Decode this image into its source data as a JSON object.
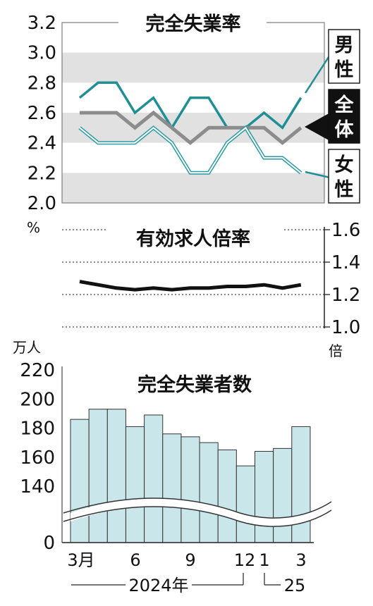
{
  "chart_data": [
    {
      "type": "line",
      "title": "完全失業率",
      "y_unit": "%",
      "ylim": [
        2.0,
        3.2
      ],
      "y_ticks": [
        "3.2",
        "3.0",
        "2.8",
        "2.6",
        "2.4",
        "2.2",
        "2.0"
      ],
      "bands": [
        [
          2.8,
          3.0
        ],
        [
          2.4,
          2.6
        ],
        [
          2.0,
          2.2
        ]
      ],
      "x": [
        "2024-03",
        "2024-04",
        "2024-05",
        "2024-06",
        "2024-07",
        "2024-08",
        "2024-09",
        "2024-10",
        "2024-11",
        "2024-12",
        "2025-01",
        "2025-02",
        "2025-03"
      ],
      "series": [
        {
          "name": "男性",
          "color": "#1f8f95",
          "values": [
            2.7,
            2.8,
            2.8,
            2.6,
            2.7,
            2.5,
            2.7,
            2.7,
            2.5,
            2.5,
            2.6,
            2.5,
            2.7
          ]
        },
        {
          "name": "全体",
          "color": "#8c8c8c",
          "values": [
            2.6,
            2.6,
            2.6,
            2.5,
            2.6,
            2.5,
            2.4,
            2.5,
            2.5,
            2.5,
            2.5,
            2.4,
            2.5
          ]
        },
        {
          "name": "女性",
          "color": "#2a9aa0",
          "values": [
            2.5,
            2.4,
            2.4,
            2.4,
            2.5,
            2.4,
            2.2,
            2.2,
            2.4,
            2.5,
            2.3,
            2.3,
            2.2
          ]
        }
      ]
    },
    {
      "type": "line",
      "title": "有効求人倍率",
      "y_unit": "倍",
      "ylim": [
        1.0,
        1.6
      ],
      "y_ticks": [
        "1.6",
        "1.4",
        "1.2",
        "1.0"
      ],
      "x": [
        "2024-03",
        "2024-04",
        "2024-05",
        "2024-06",
        "2024-07",
        "2024-08",
        "2024-09",
        "2024-10",
        "2024-11",
        "2024-12",
        "2025-01",
        "2025-02",
        "2025-03"
      ],
      "series": [
        {
          "name": "",
          "color": "#111111",
          "values": [
            1.28,
            1.26,
            1.24,
            1.23,
            1.24,
            1.23,
            1.24,
            1.24,
            1.25,
            1.25,
            1.26,
            1.24,
            1.26
          ]
        }
      ]
    },
    {
      "type": "bar",
      "title": "完全失業者数",
      "y_unit": "万人",
      "ylim": [
        0,
        220
      ],
      "y_ticks": [
        "220",
        "200",
        "180",
        "160",
        "140",
        "0"
      ],
      "axis_break": true,
      "categories": [
        "2024-03",
        "2024-04",
        "2024-05",
        "2024-06",
        "2024-07",
        "2024-08",
        "2024-09",
        "2024-10",
        "2024-11",
        "2024-12",
        "2025-01",
        "2025-02",
        "2025-03"
      ],
      "values": [
        186,
        193,
        193,
        181,
        189,
        176,
        174,
        170,
        165,
        154,
        164,
        166,
        181
      ],
      "color": "#c9e6ea"
    }
  ],
  "x_axis": {
    "tick_labels": [
      "3月",
      "6",
      "9",
      "12",
      "1",
      "3"
    ],
    "year_labels": [
      "2024年",
      "25"
    ]
  }
}
